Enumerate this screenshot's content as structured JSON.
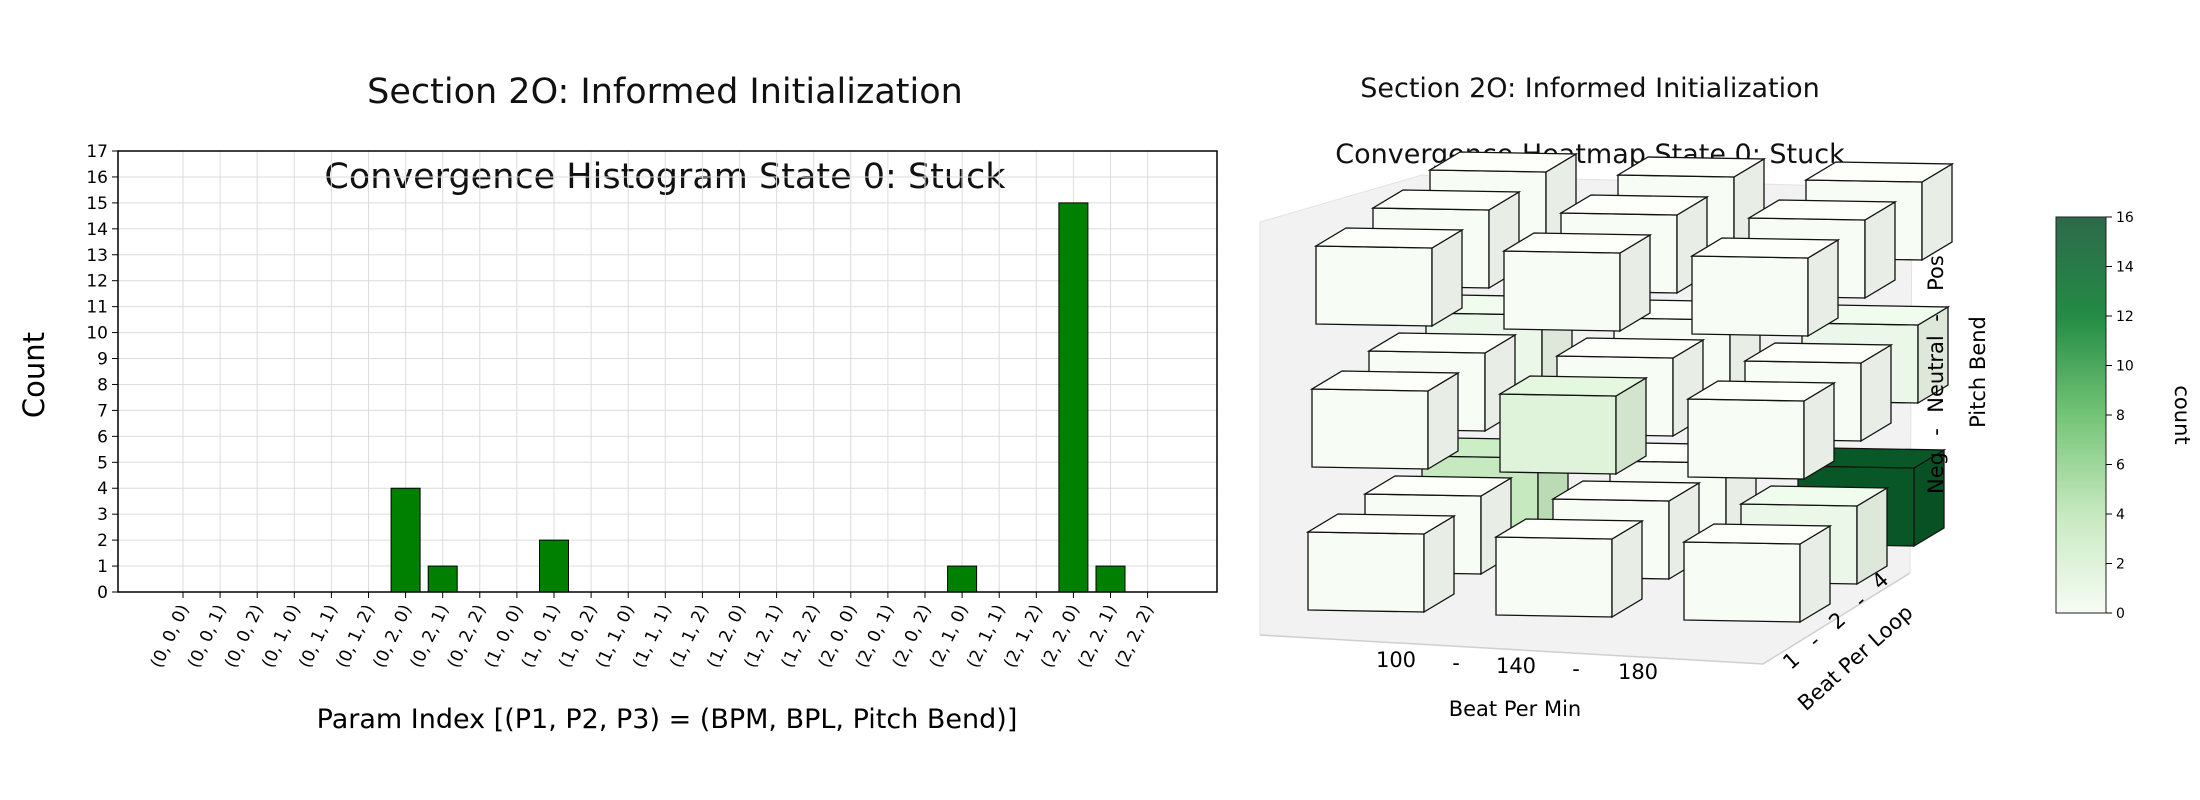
{
  "histogram": {
    "title_line1": "Section 2O: Informed Initialization",
    "title_line2": "Convergence Histogram State 0: Stuck",
    "xlabel": "Param Index [(P1, P2, P3) = (BPM, BPL, Pitch Bend)]",
    "ylabel": "Count"
  },
  "heatmap": {
    "title_line1": "Section 2O: Informed Initialization",
    "title_line2": "Convergence Heatmap State 0: Stuck",
    "xlabel": "Beat Per Min",
    "ylabel": "Beat Per Loop",
    "zlabel": "Pitch Bend",
    "x_ticks": [
      "100",
      "-",
      "140",
      "-",
      "180"
    ],
    "y_ticks": [
      "1",
      "-",
      "2",
      "-",
      "4"
    ],
    "z_ticks": [
      "Neg",
      "-",
      "Neutral",
      "-",
      "Pos"
    ],
    "colorbar_label": "count"
  },
  "colors": {
    "bar": "#008000",
    "grid": "#dcdcdc",
    "cmap_low": "#f7fcf5",
    "cmap_high": "#00441b"
  },
  "chart_data": [
    {
      "type": "bar",
      "title": "Section 2O: Informed Initialization\nConvergence Histogram State 0: Stuck",
      "xlabel": "Param Index [(P1, P2, P3) = (BPM, BPL, Pitch Bend)]",
      "ylabel": "Count",
      "ylim": [
        0,
        17
      ],
      "yticks": [
        0,
        1,
        2,
        3,
        4,
        5,
        6,
        7,
        8,
        9,
        10,
        11,
        12,
        13,
        14,
        15,
        16,
        17
      ],
      "grid": true,
      "categories": [
        "(0, 0, 0)",
        "(0, 0, 1)",
        "(0, 0, 2)",
        "(0, 1, 0)",
        "(0, 1, 1)",
        "(0, 1, 2)",
        "(0, 2, 0)",
        "(0, 2, 1)",
        "(0, 2, 2)",
        "(1, 0, 0)",
        "(1, 0, 1)",
        "(1, 0, 2)",
        "(1, 1, 0)",
        "(1, 1, 1)",
        "(1, 1, 2)",
        "(1, 2, 0)",
        "(1, 2, 1)",
        "(1, 2, 2)",
        "(2, 0, 0)",
        "(2, 0, 1)",
        "(2, 0, 2)",
        "(2, 1, 0)",
        "(2, 1, 1)",
        "(2, 1, 2)",
        "(2, 2, 0)",
        "(2, 2, 1)",
        "(2, 2, 2)"
      ],
      "values": [
        0,
        0,
        0,
        0,
        0,
        0,
        4,
        1,
        0,
        0,
        2,
        0,
        0,
        0,
        0,
        0,
        0,
        0,
        0,
        0,
        0,
        1,
        0,
        0,
        15,
        1,
        0
      ]
    },
    {
      "type": "heatmap",
      "title": "Section 2O: Informed Initialization\nConvergence Heatmap State 0: Stuck",
      "xlabel": "Beat Per Min",
      "ylabel": "Beat Per Loop",
      "zlabel": "Pitch Bend",
      "x_categories": [
        "100",
        "140",
        "180"
      ],
      "y_categories": [
        "1",
        "2",
        "4"
      ],
      "z_categories": [
        "Neg",
        "Neutral",
        "Pos"
      ],
      "colorbar": {
        "label": "count",
        "range": [
          0,
          16
        ],
        "ticks": [
          0,
          2,
          4,
          6,
          8,
          10,
          12,
          14,
          16
        ]
      },
      "cells": [
        {
          "x": 0,
          "y": 0,
          "z": 0,
          "value": 0
        },
        {
          "x": 0,
          "y": 0,
          "z": 1,
          "value": 0
        },
        {
          "x": 0,
          "y": 0,
          "z": 2,
          "value": 0
        },
        {
          "x": 0,
          "y": 1,
          "z": 0,
          "value": 0
        },
        {
          "x": 0,
          "y": 1,
          "z": 1,
          "value": 0
        },
        {
          "x": 0,
          "y": 1,
          "z": 2,
          "value": 0
        },
        {
          "x": 0,
          "y": 2,
          "z": 0,
          "value": 4
        },
        {
          "x": 0,
          "y": 2,
          "z": 1,
          "value": 1
        },
        {
          "x": 0,
          "y": 2,
          "z": 2,
          "value": 0
        },
        {
          "x": 1,
          "y": 0,
          "z": 0,
          "value": 0
        },
        {
          "x": 1,
          "y": 0,
          "z": 1,
          "value": 2
        },
        {
          "x": 1,
          "y": 0,
          "z": 2,
          "value": 0
        },
        {
          "x": 1,
          "y": 1,
          "z": 0,
          "value": 0
        },
        {
          "x": 1,
          "y": 1,
          "z": 1,
          "value": 0
        },
        {
          "x": 1,
          "y": 1,
          "z": 2,
          "value": 0
        },
        {
          "x": 1,
          "y": 2,
          "z": 0,
          "value": 0
        },
        {
          "x": 1,
          "y": 2,
          "z": 1,
          "value": 0
        },
        {
          "x": 1,
          "y": 2,
          "z": 2,
          "value": 0
        },
        {
          "x": 2,
          "y": 0,
          "z": 0,
          "value": 0
        },
        {
          "x": 2,
          "y": 0,
          "z": 1,
          "value": 0
        },
        {
          "x": 2,
          "y": 0,
          "z": 2,
          "value": 0
        },
        {
          "x": 2,
          "y": 1,
          "z": 0,
          "value": 1
        },
        {
          "x": 2,
          "y": 1,
          "z": 1,
          "value": 0
        },
        {
          "x": 2,
          "y": 1,
          "z": 2,
          "value": 0
        },
        {
          "x": 2,
          "y": 2,
          "z": 0,
          "value": 15
        },
        {
          "x": 2,
          "y": 2,
          "z": 1,
          "value": 1
        },
        {
          "x": 2,
          "y": 2,
          "z": 2,
          "value": 0
        }
      ]
    }
  ]
}
